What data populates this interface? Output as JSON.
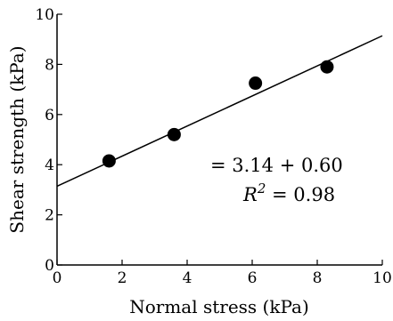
{
  "chart_data": {
    "type": "scatter",
    "xlabel": "Normal stress  (kPa)",
    "ylabel": "Shear strength (kPa)",
    "xlim": [
      0,
      10
    ],
    "ylim": [
      0,
      10
    ],
    "x_ticks": [
      0,
      2,
      4,
      6,
      8,
      10
    ],
    "y_ticks": [
      0,
      2,
      4,
      6,
      8,
      10
    ],
    "grid": false,
    "legend": "none",
    "series": [
      {
        "points": [
          {
            "x": 1.6,
            "y": 4.15
          },
          {
            "x": 3.6,
            "y": 5.2
          },
          {
            "x": 6.1,
            "y": 7.25
          },
          {
            "x": 8.3,
            "y": 7.9
          }
        ]
      }
    ],
    "fit_line": {
      "intercept": 3.14,
      "slope": 0.6
    },
    "annotations": {
      "equation": "= 3.14 + 0.60",
      "r2_prefix": "R",
      "r2_exp": "2",
      "r2_value": " = 0.98"
    }
  }
}
